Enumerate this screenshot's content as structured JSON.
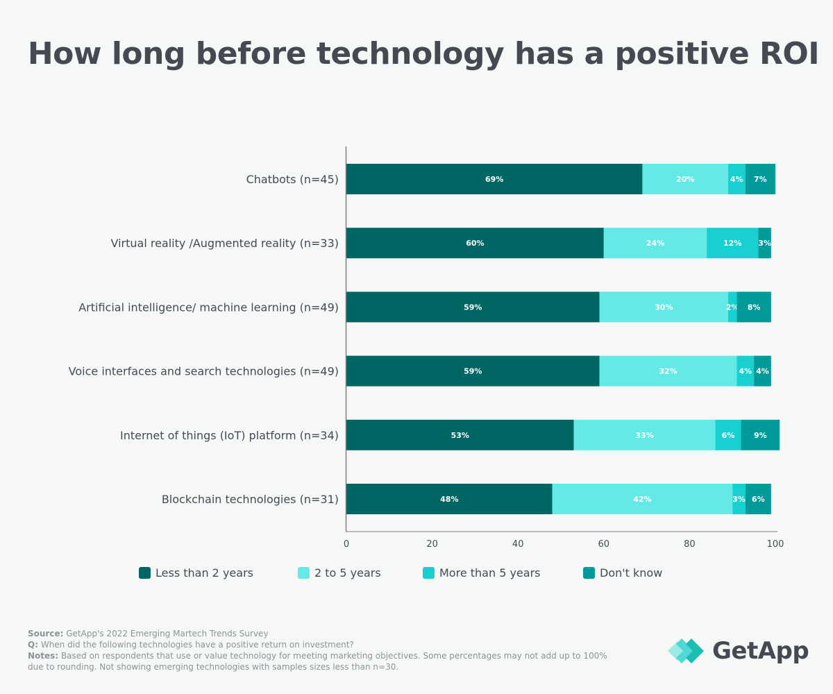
{
  "title": "How long before technology has a positive ROI",
  "colors": {
    "less_than_2": "#006663",
    "two_to_5": "#64e9e6",
    "more_than_5": "#18d0d0",
    "dont_know": "#009b98",
    "axis": "#808080",
    "text": "#454a52"
  },
  "chart_data": {
    "type": "bar",
    "orientation": "horizontal",
    "stacked": true,
    "title": "How long before technology has a positive ROI",
    "xlabel": "",
    "ylabel": "",
    "xlim": [
      0,
      100
    ],
    "xticks": [
      0,
      20,
      40,
      60,
      80,
      100
    ],
    "grid": false,
    "legend_position": "bottom",
    "categories": [
      "Chatbots (n=45)",
      "Virtual reality /Augmented reality (n=33)",
      "Artificial intelligence/ machine learning (n=49)",
      "Voice interfaces and search technologies (n=49)",
      "Internet of things (IoT) platform (n=34)",
      "Blockchain technologies (n=31)"
    ],
    "series": [
      {
        "name": "Less than 2 years",
        "color_key": "less_than_2",
        "values": [
          69,
          60,
          59,
          59,
          53,
          48
        ]
      },
      {
        "name": "2 to 5 years",
        "color_key": "two_to_5",
        "values": [
          20,
          24,
          30,
          32,
          33,
          42
        ]
      },
      {
        "name": "More than 5 years",
        "color_key": "more_than_5",
        "values": [
          4,
          12,
          2,
          4,
          6,
          3
        ]
      },
      {
        "name": "Don't know",
        "color_key": "dont_know",
        "values": [
          7,
          3,
          8,
          4,
          9,
          6
        ]
      }
    ]
  },
  "legend": [
    {
      "label": "Less than 2 years",
      "color_key": "less_than_2"
    },
    {
      "label": "2 to 5 years",
      "color_key": "two_to_5"
    },
    {
      "label": "More than 5 years",
      "color_key": "more_than_5"
    },
    {
      "label": "Don't know",
      "color_key": "dont_know"
    }
  ],
  "footer": {
    "source_label": "Source:",
    "source_text": "GetApp's 2022 Emerging Martech Trends Survey",
    "q_label": "Q:",
    "q_text": "When did the following technologies have a positive return on investment?",
    "notes_label": "Notes:",
    "notes_text": "Based on respondents that use or value technology for meeting marketing objectives. Some percentages may not add up to 100% due to rounding. Not showing emerging technologies with samples sizes less than n=30."
  },
  "logo": {
    "text": "GetApp",
    "icon": "getapp-chevrons-icon"
  }
}
